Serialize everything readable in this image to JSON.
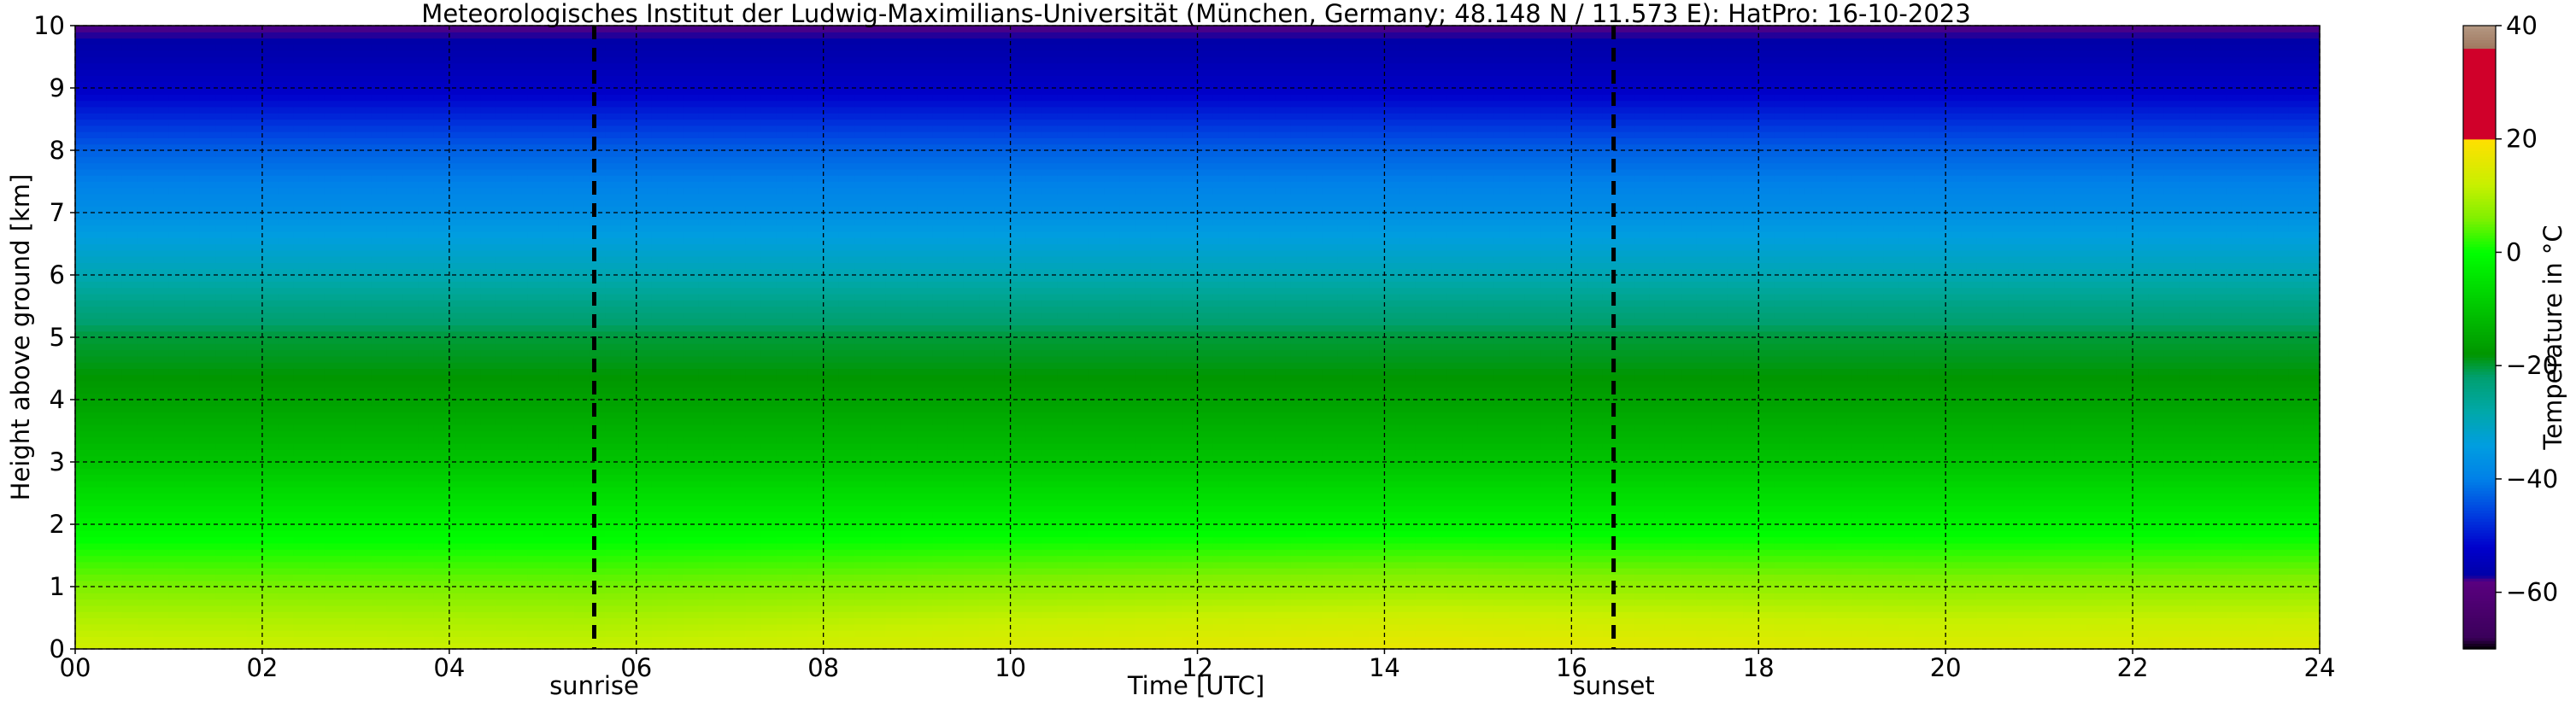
{
  "chart_data": {
    "type": "heatmap",
    "title": "Meteorologisches Institut der Ludwig-Maximilians-Universität (München, Germany; 48.148 N / 11.573 E):    HatPro: 16-10-2023",
    "xlabel": "Time [UTC]",
    "ylabel": "Height above ground [km]",
    "xlim": [
      0,
      24
    ],
    "ylim": [
      0,
      10
    ],
    "x_ticks": [
      "00",
      "02",
      "04",
      "06",
      "08",
      "10",
      "12",
      "14",
      "16",
      "18",
      "20",
      "22",
      "24"
    ],
    "y_ticks": [
      "0",
      "1",
      "2",
      "3",
      "4",
      "5",
      "6",
      "7",
      "8",
      "9",
      "10"
    ],
    "grid": true,
    "markers": [
      {
        "label": "sunrise",
        "x": 5.55
      },
      {
        "label": "sunset",
        "x": 16.45
      }
    ],
    "colorbar": {
      "label": "Temperature in °C",
      "range": [
        -70,
        40
      ],
      "ticks": [
        "−60",
        "−40",
        "−20",
        "0",
        "20",
        "40"
      ],
      "tick_values": [
        -60,
        -40,
        -20,
        0,
        20,
        40
      ],
      "colors": [
        {
          "value": -70,
          "color": "#000000"
        },
        {
          "value": -68,
          "color": "#3a005a"
        },
        {
          "value": -58,
          "color": "#5a0080"
        },
        {
          "value": -57,
          "color": "#0000a8"
        },
        {
          "value": -52,
          "color": "#0000cc"
        },
        {
          "value": -46,
          "color": "#0040e0"
        },
        {
          "value": -40,
          "color": "#0080e8"
        },
        {
          "value": -34,
          "color": "#009ee0"
        },
        {
          "value": -28,
          "color": "#00a8a8"
        },
        {
          "value": -22,
          "color": "#00a070"
        },
        {
          "value": -18,
          "color": "#009600"
        },
        {
          "value": -12,
          "color": "#00b800"
        },
        {
          "value": -6,
          "color": "#00dc00"
        },
        {
          "value": 0,
          "color": "#00ff00"
        },
        {
          "value": 6,
          "color": "#80f000"
        },
        {
          "value": 12,
          "color": "#c8f000"
        },
        {
          "value": 19.9,
          "color": "#ffe000"
        },
        {
          "value": 20,
          "color": "#d0002a"
        },
        {
          "value": 35.9,
          "color": "#d0002a"
        },
        {
          "value": 36,
          "color": "#a07860"
        },
        {
          "value": 40,
          "color": "#b49882"
        }
      ]
    },
    "temperature_profile": {
      "heights_km": [
        0,
        0.5,
        1,
        1.5,
        2,
        2.5,
        3,
        3.5,
        4,
        4.5,
        5,
        5.5,
        6,
        6.5,
        7,
        7.5,
        8,
        8.5,
        9,
        9.5,
        10
      ],
      "temps_c": [
        13,
        10,
        6,
        2,
        -2,
        -6,
        -10,
        -13,
        -16,
        -18.5,
        -20,
        -24,
        -29,
        -33,
        -37,
        -40,
        -43,
        -48,
        -53,
        -56,
        -58
      ],
      "surface_diurnal": [
        {
          "x": 0,
          "dT": 0
        },
        {
          "x": 5.5,
          "dT": -1
        },
        {
          "x": 10,
          "dT": 2
        },
        {
          "x": 14.5,
          "dT": 4
        },
        {
          "x": 17,
          "dT": 3
        },
        {
          "x": 20,
          "dT": 2
        },
        {
          "x": 24,
          "dT": 2.5
        }
      ]
    }
  }
}
